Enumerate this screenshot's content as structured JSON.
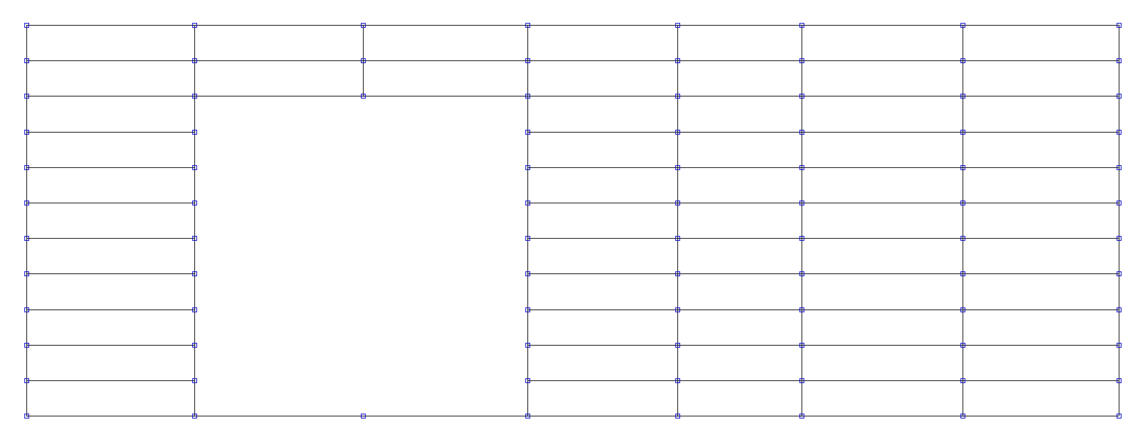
{
  "grid": {
    "rows": 11,
    "columns": 7,
    "merged_region": {
      "first_row": 2,
      "last_row": 10,
      "first_column": 1,
      "last_column": 2
    }
  },
  "colors": {
    "background": "#ffffff",
    "line": "#000000",
    "handle": "#0000cc"
  }
}
